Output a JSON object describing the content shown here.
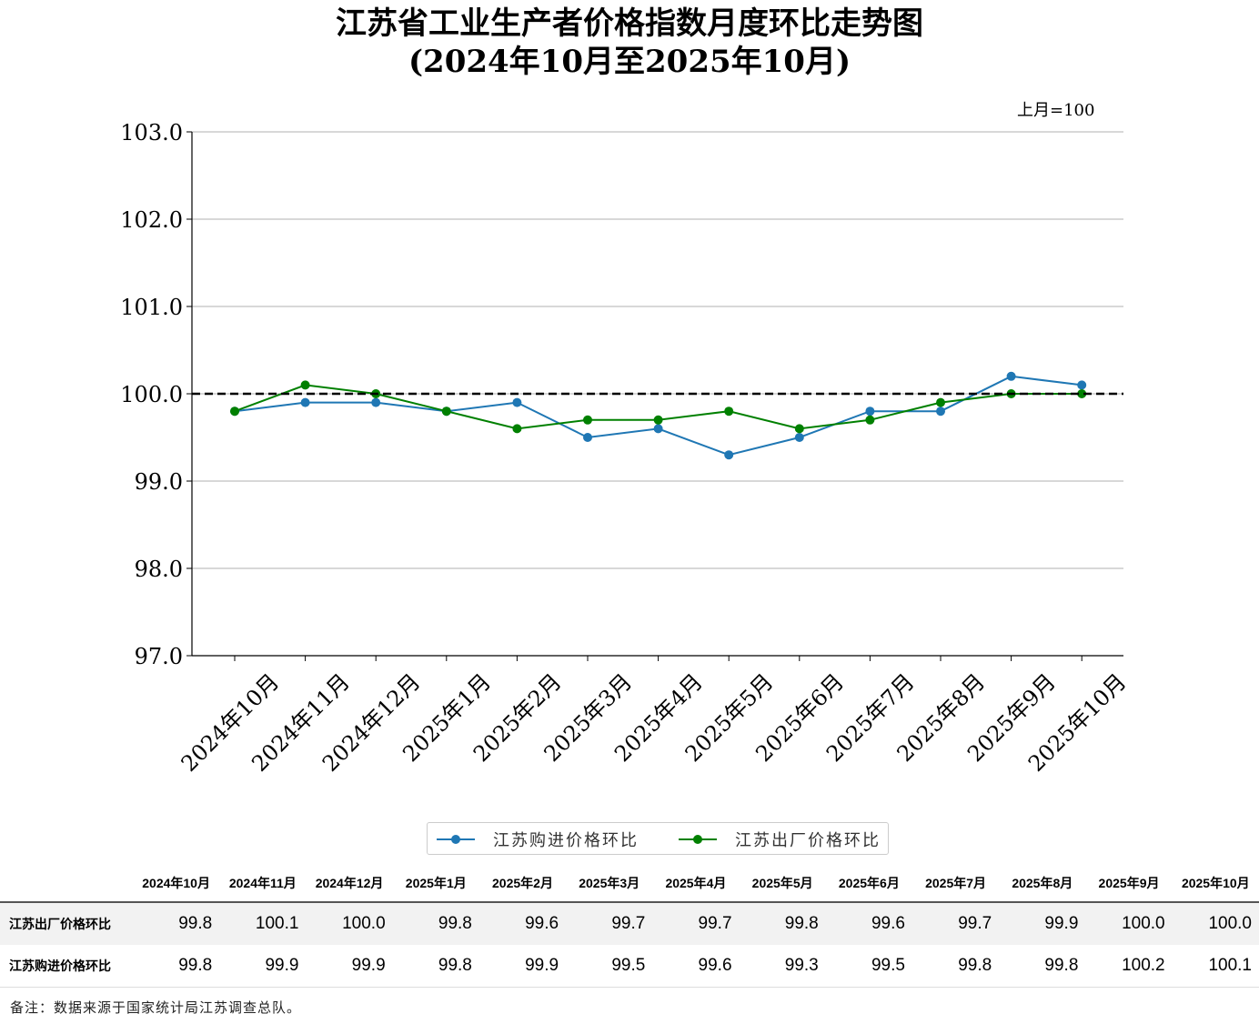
{
  "title_line1": "江苏省工业生产者价格指数月度环比走势图",
  "title_line2": "(2024年10月至2025年10月)",
  "unit_note": "上月=100",
  "chart_data": {
    "type": "line",
    "categories": [
      "2024年10月",
      "2024年11月",
      "2024年12月",
      "2025年1月",
      "2025年2月",
      "2025年3月",
      "2025年4月",
      "2025年5月",
      "2025年6月",
      "2025年7月",
      "2025年8月",
      "2025年9月",
      "2025年10月"
    ],
    "series": [
      {
        "name": "江苏购进价格环比",
        "color": "#1f77b4",
        "values": [
          99.8,
          99.9,
          99.9,
          99.8,
          99.9,
          99.5,
          99.6,
          99.3,
          99.5,
          99.8,
          99.8,
          100.2,
          100.1
        ]
      },
      {
        "name": "江苏出厂价格环比",
        "color": "#008000",
        "values": [
          99.8,
          100.1,
          100.0,
          99.8,
          99.6,
          99.7,
          99.7,
          99.8,
          99.6,
          99.7,
          99.9,
          100.0,
          100.0
        ]
      }
    ],
    "ylim": [
      97.0,
      103.0
    ],
    "yticks": [
      "97.0",
      "98.0",
      "99.0",
      "100.0",
      "101.0",
      "102.0",
      "103.0"
    ],
    "reference_line": 100.0,
    "grid": "horizontal",
    "legend_position": "bottom-center"
  },
  "table": {
    "headers": [
      "2024年10月",
      "2024年11月",
      "2024年12月",
      "2025年1月",
      "2025年2月",
      "2025年3月",
      "2025年4月",
      "2025年5月",
      "2025年6月",
      "2025年7月",
      "2025年8月",
      "2025年9月",
      "2025年10月"
    ],
    "rows": [
      {
        "label": "江苏出厂价格环比",
        "values": [
          "99.8",
          "100.1",
          "100.0",
          "99.8",
          "99.6",
          "99.7",
          "99.7",
          "99.8",
          "99.6",
          "99.7",
          "99.9",
          "100.0",
          "100.0"
        ]
      },
      {
        "label": "江苏购进价格环比",
        "values": [
          "99.8",
          "99.9",
          "99.9",
          "99.8",
          "99.9",
          "99.5",
          "99.6",
          "99.3",
          "99.5",
          "99.8",
          "99.8",
          "100.2",
          "100.1"
        ]
      }
    ]
  },
  "footnote": "备注：数据来源于国家统计局江苏调查总队。"
}
